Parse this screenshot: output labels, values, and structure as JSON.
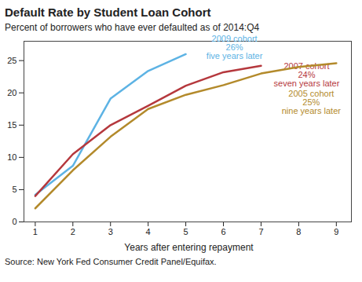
{
  "chart_data": {
    "type": "line",
    "title": "Default Rate by Student Loan Cohort",
    "subtitle": "Percent of borrowers who have ever defaulted as of 2014:Q4",
    "x_label": "Years after entering repayment",
    "source": "Source: New York Fed Consumer Credit Panel/Equifax.",
    "x": [
      1,
      2,
      3,
      4,
      5,
      6,
      7,
      8,
      9
    ],
    "series": [
      {
        "name": "2009 cohort",
        "color": "#5db3e4",
        "values": [
          4.2,
          8.7,
          19.1,
          23.4,
          26,
          null,
          null,
          null,
          null
        ],
        "annotation": [
          "2009 cohort",
          "26%",
          "five years later"
        ]
      },
      {
        "name": "2007 cohort",
        "color": "#b5383d",
        "values": [
          4.0,
          10.5,
          15.0,
          18.0,
          21.1,
          23.2,
          24.2,
          null,
          null
        ],
        "annotation": [
          "2007 cohort",
          "24%",
          "seven years later"
        ]
      },
      {
        "name": "2005 cohort",
        "color": "#b38a2b",
        "values": [
          2.1,
          8.0,
          13.2,
          17.5,
          19.7,
          21.2,
          23.0,
          24.0,
          24.6
        ],
        "annotation": [
          "2005 cohort",
          "25%",
          "nine years later"
        ]
      }
    ],
    "xlim": [
      0.7,
      9.4
    ],
    "xticks": [
      1,
      2,
      3,
      4,
      5,
      6,
      7,
      8,
      9
    ],
    "ylim": [
      0,
      28
    ],
    "yticks": [
      0,
      5,
      10,
      15,
      20,
      25
    ],
    "grid": false
  }
}
